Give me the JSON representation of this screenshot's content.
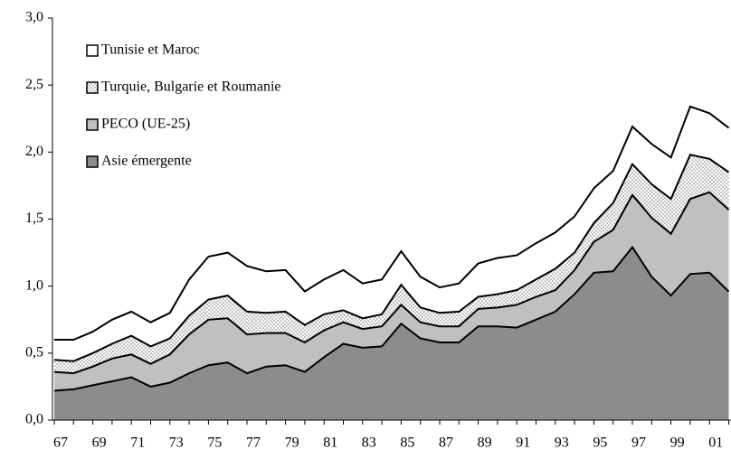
{
  "chart_data": {
    "type": "stacked_area",
    "categories": [
      "67",
      null,
      "69",
      null,
      "71",
      null,
      "73",
      null,
      "75",
      null,
      "77",
      null,
      "79",
      null,
      "81",
      null,
      "83",
      null,
      "85",
      null,
      "87",
      null,
      "89",
      null,
      "91",
      null,
      "93",
      null,
      "95",
      null,
      "97",
      null,
      "99",
      null,
      "01",
      null
    ],
    "series": [
      {
        "name": "Asie émergente",
        "color": "#8c8c8c",
        "values": [
          0.22,
          0.23,
          0.26,
          0.29,
          0.32,
          0.25,
          0.28,
          0.35,
          0.41,
          0.43,
          0.35,
          0.4,
          0.41,
          0.36,
          0.47,
          0.57,
          0.54,
          0.55,
          0.72,
          0.61,
          0.58,
          0.58,
          0.7,
          0.7,
          0.69,
          0.75,
          0.81,
          0.94,
          1.1,
          1.11,
          1.29,
          1.07,
          0.93,
          1.09,
          1.1,
          0.96
        ]
      },
      {
        "name": "PECO (UE-25)",
        "color": "#c0c0c0",
        "values": [
          0.14,
          0.12,
          0.14,
          0.17,
          0.17,
          0.17,
          0.21,
          0.29,
          0.34,
          0.33,
          0.29,
          0.25,
          0.24,
          0.22,
          0.2,
          0.16,
          0.14,
          0.15,
          0.14,
          0.12,
          0.12,
          0.12,
          0.13,
          0.14,
          0.17,
          0.17,
          0.16,
          0.18,
          0.23,
          0.31,
          0.39,
          0.44,
          0.46,
          0.56,
          0.6,
          0.61
        ]
      },
      {
        "name": "Turquie, Bulgarie et Roumanie",
        "color": "#e4e4e4",
        "fill_pattern": "dots",
        "values": [
          0.09,
          0.09,
          0.1,
          0.11,
          0.14,
          0.13,
          0.12,
          0.14,
          0.15,
          0.17,
          0.17,
          0.15,
          0.16,
          0.13,
          0.12,
          0.09,
          0.08,
          0.09,
          0.15,
          0.11,
          0.1,
          0.11,
          0.09,
          0.1,
          0.11,
          0.13,
          0.16,
          0.13,
          0.14,
          0.2,
          0.23,
          0.25,
          0.26,
          0.33,
          0.25,
          0.28
        ]
      },
      {
        "name": "Tunisie et Maroc",
        "color": "#ffffff",
        "values": [
          0.15,
          0.16,
          0.16,
          0.18,
          0.18,
          0.18,
          0.19,
          0.27,
          0.32,
          0.32,
          0.34,
          0.31,
          0.31,
          0.25,
          0.26,
          0.3,
          0.26,
          0.26,
          0.25,
          0.23,
          0.19,
          0.21,
          0.25,
          0.27,
          0.26,
          0.27,
          0.27,
          0.27,
          0.26,
          0.24,
          0.28,
          0.3,
          0.31,
          0.36,
          0.34,
          0.33
        ]
      }
    ],
    "ylim": [
      0,
      3
    ],
    "yticks": [
      {
        "value": 0,
        "label": "0,0"
      },
      {
        "value": 0.5,
        "label": "0,5"
      },
      {
        "value": 1,
        "label": "1,0"
      },
      {
        "value": 1.5,
        "label": "1,5"
      },
      {
        "value": 2,
        "label": "2,0"
      },
      {
        "value": 2.5,
        "label": "2,5"
      },
      {
        "value": 3,
        "label": "3,0"
      }
    ],
    "legend": "top-left"
  }
}
